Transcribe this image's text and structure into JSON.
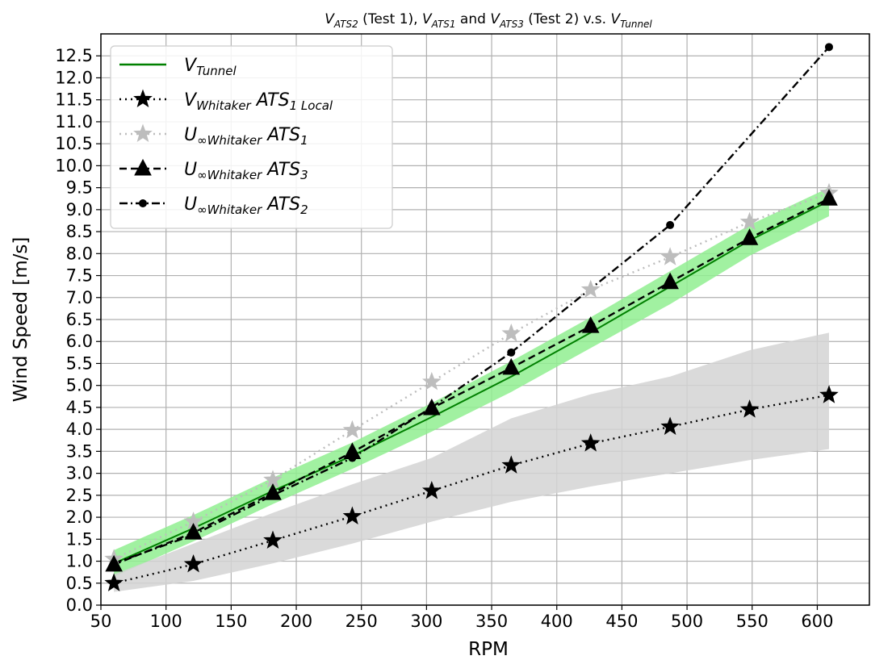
{
  "chart_data": {
    "type": "line",
    "title": {
      "segments": [
        {
          "text": "V",
          "italic": true
        },
        {
          "text": "ATS2",
          "italic": true,
          "sub": true
        },
        {
          "text": " (Test 1), "
        },
        {
          "text": "V",
          "italic": true
        },
        {
          "text": "ATS1",
          "italic": true,
          "sub": true
        },
        {
          "text": " and "
        },
        {
          "text": "V",
          "italic": true
        },
        {
          "text": "ATS3",
          "italic": true,
          "sub": true
        },
        {
          "text": " (Test 2) v.s. "
        },
        {
          "text": "V",
          "italic": true
        },
        {
          "text": "Tunnel",
          "italic": true,
          "sub": true
        }
      ]
    },
    "xlabel": "RPM",
    "ylabel": "Wind Speed [m/s]",
    "xlim": [
      50,
      640
    ],
    "ylim": [
      0.0,
      13.0
    ],
    "xticks": [
      50,
      100,
      150,
      200,
      250,
      300,
      350,
      400,
      450,
      500,
      550,
      600
    ],
    "yticks": [
      "0.0",
      "0.5",
      "1.0",
      "1.5",
      "2.0",
      "2.5",
      "3.0",
      "3.5",
      "4.0",
      "4.5",
      "5.0",
      "5.5",
      "6.0",
      "6.5",
      "7.0",
      "7.5",
      "8.0",
      "8.5",
      "9.0",
      "9.5",
      "10.0",
      "10.5",
      "11.0",
      "11.5",
      "12.0",
      "12.5"
    ],
    "grid": true,
    "legend_position": "top-left",
    "x": [
      60,
      121,
      182,
      243,
      304,
      365,
      426,
      487,
      548,
      609
    ],
    "bands": [
      {
        "for": "V_Tunnel",
        "color": "#90ee90",
        "lower": [
          0.65,
          1.45,
          2.3,
          3.1,
          3.95,
          4.85,
          5.85,
          6.85,
          7.95,
          8.85
        ],
        "upper": [
          1.25,
          2.05,
          2.9,
          3.7,
          4.6,
          5.55,
          6.55,
          7.6,
          8.65,
          9.5
        ]
      },
      {
        "for": "V_Whitaker_ATS1_Local",
        "color": "#d3d3d3",
        "lower": [
          0.3,
          0.55,
          0.95,
          1.4,
          1.9,
          2.35,
          2.7,
          3.0,
          3.3,
          3.55
        ],
        "upper": [
          0.7,
          1.4,
          2.1,
          2.75,
          3.35,
          4.25,
          4.8,
          5.2,
          5.8,
          6.2
        ]
      }
    ],
    "series": [
      {
        "legend": [
          {
            "text": "V"
          },
          {
            "text": "Tunnel",
            "sub": true
          }
        ],
        "color": "#008000",
        "dash": "",
        "marker": "none",
        "values": [
          0.95,
          1.75,
          2.6,
          3.4,
          4.28,
          5.2,
          6.2,
          7.25,
          8.3,
          9.2
        ]
      },
      {
        "legend": [
          {
            "text": "V"
          },
          {
            "text": "Whitaker",
            "sub": true
          },
          {
            "text": " ATS"
          },
          {
            "text": "1",
            "sub": true
          },
          {
            "text": " Local",
            "sub": true
          }
        ],
        "color": "#000000",
        "dash": "2,5",
        "marker": "star",
        "values": [
          0.5,
          0.93,
          1.47,
          2.02,
          2.6,
          3.18,
          3.68,
          4.06,
          4.45,
          4.78
        ]
      },
      {
        "legend": [
          {
            "text": "U"
          },
          {
            "text": "∞Whitaker",
            "sub": true
          },
          {
            "text": " ATS"
          },
          {
            "text": "1",
            "sub": true
          }
        ],
        "color": "#bdbdbd",
        "dash": "2,5",
        "marker": "star",
        "values": [
          1.05,
          1.9,
          2.85,
          3.98,
          5.08,
          6.18,
          7.18,
          7.92,
          8.72,
          9.38
        ]
      },
      {
        "legend": [
          {
            "text": "U"
          },
          {
            "text": "∞Whitaker",
            "sub": true
          },
          {
            "text": " ATS"
          },
          {
            "text": "3",
            "sub": true
          }
        ],
        "color": "#000000",
        "dash": "9,5",
        "marker": "triangle",
        "values": [
          0.92,
          1.65,
          2.55,
          3.48,
          4.48,
          5.4,
          6.35,
          7.35,
          8.35,
          9.25
        ]
      },
      {
        "legend": [
          {
            "text": "U"
          },
          {
            "text": "∞Whitaker",
            "sub": true
          },
          {
            "text": " ATS"
          },
          {
            "text": "2",
            "sub": true
          }
        ],
        "color": "#000000",
        "dash": "10,4,2,4",
        "marker": "dot",
        "values": [
          0.95,
          1.6,
          2.5,
          3.35,
          4.5,
          5.75,
          null,
          8.65,
          null,
          12.7
        ]
      }
    ]
  }
}
